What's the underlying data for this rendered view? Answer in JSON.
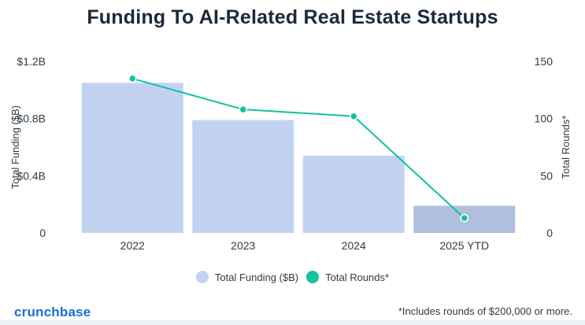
{
  "header": {
    "title": "Funding To AI-Related Real Estate Startups"
  },
  "colors": {
    "bar": "#c2d3f2",
    "bar_last": "#b1bfdf",
    "line": "#12c2a0",
    "text": "#2f3b45"
  },
  "chart_data": {
    "type": "bar",
    "title": "Funding To AI-Related Real Estate Startups",
    "categories": [
      "2022",
      "2023",
      "2024",
      "2025 YTD"
    ],
    "series": [
      {
        "name": "Total Funding ($B)",
        "type": "bar",
        "axis": "left",
        "values": [
          1.05,
          0.79,
          0.54,
          0.19
        ]
      },
      {
        "name": "Total Rounds*",
        "type": "line",
        "axis": "right",
        "values": [
          135,
          108,
          102,
          13
        ]
      }
    ],
    "ylabel": "Total Funding ($B)",
    "y2label": "Total Rounds*",
    "ylim": [
      0,
      1.2
    ],
    "y2lim": [
      0,
      150
    ],
    "yticks": [
      "0",
      "$0.4B",
      "$0.8B",
      "$1.2B"
    ],
    "yticks_values": [
      0,
      0.4,
      0.8,
      1.2
    ],
    "y2ticks": [
      "0",
      "50",
      "100",
      "150"
    ],
    "y2ticks_values": [
      0,
      50,
      100,
      150
    ],
    "grid": false,
    "legend_position": "bottom-center"
  },
  "legend": [
    {
      "label": "Total Funding ($B)"
    },
    {
      "label": "Total Rounds*"
    }
  ],
  "footer": {
    "brand": "crunchbase",
    "note": "*Includes rounds of $200,000 or more."
  }
}
